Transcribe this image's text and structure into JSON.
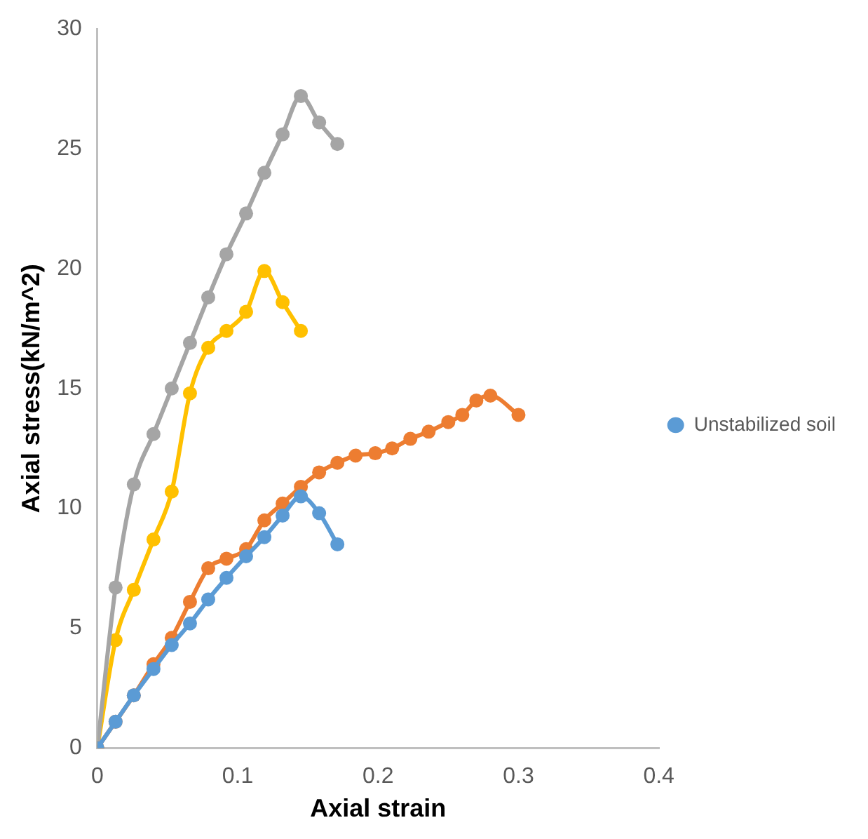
{
  "chart_data": {
    "type": "line",
    "xlabel": "Axial strain",
    "ylabel": "Axial stress(kN/m^2)",
    "xlim": [
      0,
      0.4
    ],
    "xticks": [
      0,
      0.1,
      0.2,
      0.3,
      0.4
    ],
    "ylim": [
      0,
      30
    ],
    "yticks": [
      0,
      5,
      10,
      15,
      20,
      25,
      30
    ],
    "grid": false,
    "legend": "right",
    "marker": "circle",
    "line_style": "solid",
    "series": [
      {
        "name": "Unstabilized soil",
        "color": "#5b9bd5",
        "x": [
          0,
          0.013,
          0.026,
          0.04,
          0.053,
          0.066,
          0.079,
          0.092,
          0.106,
          0.119,
          0.132,
          0.145,
          0.158,
          0.171
        ],
        "values": [
          0,
          1.1,
          2.2,
          3.3,
          4.3,
          5.2,
          6.2,
          7.1,
          8.0,
          8.8,
          9.7,
          10.5,
          9.8,
          8.5
        ]
      },
      {
        "color": "#ed7d31",
        "x": [
          0,
          0.013,
          0.026,
          0.04,
          0.053,
          0.066,
          0.079,
          0.092,
          0.106,
          0.119,
          0.132,
          0.145,
          0.158,
          0.171,
          0.184,
          0.198,
          0.21,
          0.223,
          0.236,
          0.25,
          0.26,
          0.27,
          0.28,
          0.3
        ],
        "values": [
          0,
          1.1,
          2.2,
          3.5,
          4.6,
          6.1,
          7.5,
          7.9,
          8.3,
          9.5,
          10.2,
          10.9,
          11.5,
          11.9,
          12.2,
          12.3,
          12.5,
          12.9,
          13.2,
          13.6,
          13.9,
          14.5,
          14.7,
          13.9
        ]
      },
      {
        "color": "#a5a5a5",
        "x": [
          0,
          0.013,
          0.026,
          0.04,
          0.053,
          0.066,
          0.079,
          0.092,
          0.106,
          0.119,
          0.132,
          0.145,
          0.158,
          0.171
        ],
        "values": [
          0,
          6.7,
          11.0,
          13.1,
          15.0,
          16.9,
          18.8,
          20.6,
          22.3,
          24.0,
          25.6,
          27.2,
          26.1,
          25.2
        ]
      },
      {
        "color": "#ffc000",
        "x": [
          0,
          0.013,
          0.026,
          0.04,
          0.053,
          0.066,
          0.079,
          0.092,
          0.106,
          0.119,
          0.132,
          0.145
        ],
        "values": [
          0,
          4.5,
          6.6,
          8.7,
          10.7,
          14.8,
          16.7,
          17.4,
          18.2,
          19.9,
          18.6,
          17.4
        ]
      }
    ]
  }
}
